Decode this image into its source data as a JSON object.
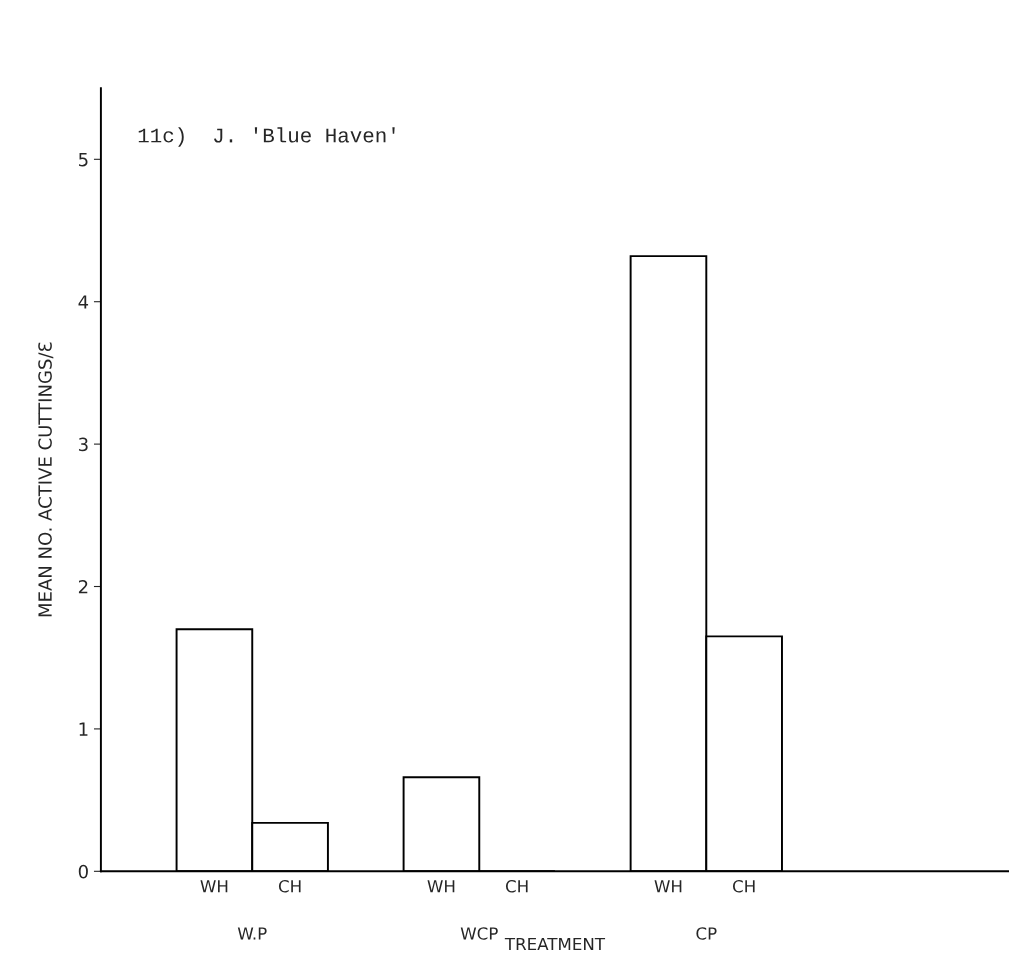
{
  "chart_data": {
    "type": "bar",
    "title": "11c)  J. 'Blue Haven'",
    "xlabel": "TREATMENT",
    "ylabel": "MEAN NO. ACTIVE CUTTINGS/Ɛ",
    "categories": [
      "WH",
      "CH",
      null,
      "WH",
      "CH",
      null,
      "WH",
      "CH"
    ],
    "values": [
      1.7,
      0.34,
      null,
      0.66,
      0,
      null,
      4.32,
      1.65
    ],
    "color": "#ffffff",
    "annotations": [
      "W.P",
      "WCP",
      "CP"
    ],
    "ylim": [
      0,
      5.5
    ],
    "yticks": [
      0,
      1,
      2,
      3,
      4,
      5
    ],
    "grid": false
  }
}
